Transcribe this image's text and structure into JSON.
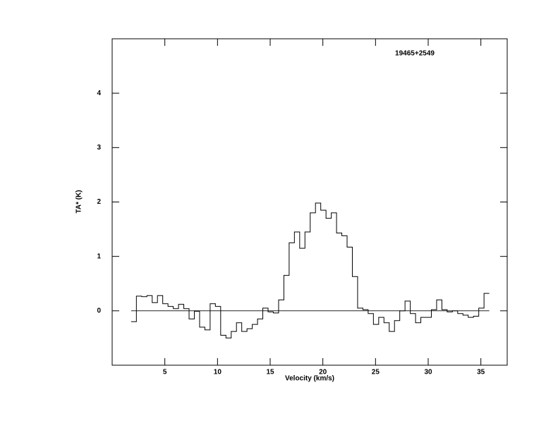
{
  "chart_data": {
    "type": "step",
    "title": "19465+2549",
    "x_label": "Velocity (km/s)",
    "y_label": "TA* (K)",
    "x": [
      2.05,
      2.55,
      3.05,
      3.55,
      4.05,
      4.55,
      5.05,
      5.55,
      6.05,
      6.55,
      7.05,
      7.55,
      8.05,
      8.55,
      9.05,
      9.55,
      10.05,
      10.55,
      11.05,
      11.55,
      12.05,
      12.55,
      13.05,
      13.55,
      14.05,
      14.55,
      15.05,
      15.55,
      16.05,
      16.55,
      17.05,
      17.55,
      18.05,
      18.55,
      19.05,
      19.55,
      20.05,
      20.55,
      21.05,
      21.55,
      22.05,
      22.55,
      23.05,
      23.55,
      24.05,
      24.55,
      25.05,
      25.55,
      26.05,
      26.55,
      27.05,
      27.55,
      28.05,
      28.55,
      29.05,
      29.55,
      30.05,
      30.55,
      31.05,
      31.55,
      32.05,
      32.55,
      33.05,
      33.55,
      34.05,
      34.55,
      35.05,
      35.55
    ],
    "series": [
      {
        "color": "#000000",
        "values": [
          -0.2,
          0.27,
          0.26,
          0.28,
          0.15,
          0.28,
          0.13,
          0.08,
          0.04,
          0.12,
          0.04,
          -0.15,
          -0.01,
          -0.3,
          -0.35,
          0.13,
          0.08,
          -0.45,
          -0.5,
          -0.38,
          -0.22,
          -0.38,
          -0.33,
          -0.25,
          -0.15,
          0.05,
          -0.02,
          -0.04,
          0.2,
          0.65,
          1.25,
          1.45,
          1.15,
          1.45,
          1.8,
          1.98,
          1.85,
          1.7,
          1.8,
          1.43,
          1.38,
          1.17,
          0.63,
          0.05,
          0.02,
          -0.05,
          -0.25,
          -0.12,
          -0.22,
          -0.38,
          -0.18,
          0.0,
          0.18,
          -0.05,
          -0.22,
          -0.12,
          -0.12,
          0.02,
          0.2,
          0.02,
          -0.02,
          0.0,
          -0.05,
          -0.08,
          -0.12,
          -0.1,
          0.05,
          0.32
        ]
      }
    ],
    "xlim": [
      0,
      37.5
    ],
    "ylim": [
      -1,
      5
    ],
    "xticks": [
      5,
      10,
      15,
      20,
      25,
      30,
      35
    ],
    "yticks": [
      0,
      1,
      2,
      3,
      4
    ]
  }
}
